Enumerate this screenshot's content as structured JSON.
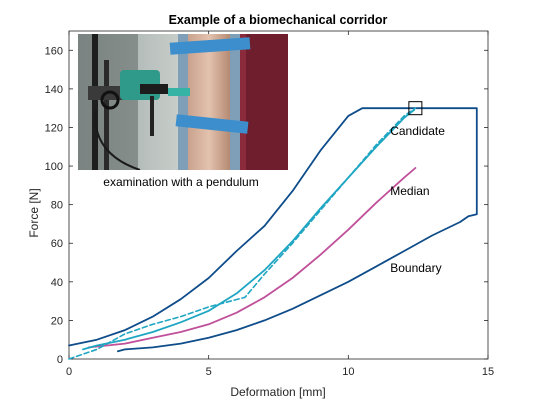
{
  "chart_data": {
    "type": "line",
    "title": "Example of a biomechanical corridor",
    "xlabel": "Deformation [mm]",
    "ylabel": "Force [N]",
    "xlim": [
      0,
      15
    ],
    "ylim": [
      0,
      170
    ],
    "xticks": [
      0,
      5,
      10,
      15
    ],
    "yticks": [
      0,
      20,
      40,
      60,
      80,
      100,
      120,
      140,
      160
    ],
    "grid": false,
    "colors": {
      "boundary": "#0e4c8a",
      "median": "#c0509a",
      "candidate": "#1ea6c3",
      "axis": "#262626"
    },
    "series": [
      {
        "name": "Boundary",
        "role": "boundary",
        "x": [
          0,
          1,
          2,
          3,
          4,
          5,
          6,
          7,
          8,
          9,
          10,
          10.5,
          12,
          14.6,
          14.6,
          14.3,
          14,
          13,
          12,
          11,
          10,
          9,
          8,
          7,
          6,
          5,
          4,
          3,
          2,
          1.75
        ],
        "y": [
          7,
          10,
          15,
          22,
          31,
          42,
          56,
          69,
          87,
          108,
          126,
          130,
          130,
          130,
          75,
          74,
          71,
          64,
          56,
          48,
          40,
          33,
          26,
          20,
          15,
          11,
          8,
          6,
          5,
          4
        ]
      },
      {
        "name": "Median",
        "role": "median",
        "x": [
          0.7,
          2,
          3,
          4,
          5,
          6,
          7,
          8,
          9,
          10,
          11,
          12,
          12.4
        ],
        "y": [
          6,
          8,
          11,
          14,
          18,
          24,
          32,
          42,
          54,
          67,
          81,
          94,
          99
        ]
      },
      {
        "name": "Candidate",
        "role": "candidate",
        "x": [
          0.5,
          1,
          2,
          3,
          4,
          5,
          6,
          7,
          8,
          9,
          10,
          11,
          12,
          12.35
        ],
        "y": [
          5,
          7,
          10,
          14,
          19,
          25,
          34,
          46,
          61,
          78,
          94,
          110,
          125,
          129
        ]
      },
      {
        "name": "",
        "role": "candidate-dashed",
        "x": [
          0,
          1,
          2,
          3,
          4,
          5,
          6.3,
          7,
          8,
          9,
          10,
          11,
          12,
          12.4
        ],
        "y": [
          0,
          5,
          13,
          18,
          22,
          27,
          32,
          44,
          60,
          77,
          94,
          111,
          126,
          130
        ]
      }
    ],
    "annotations": [
      {
        "text": "Candidate",
        "x": 11.5,
        "y": 116
      },
      {
        "text": "Median",
        "x": 11.5,
        "y": 85
      },
      {
        "text": "Boundary",
        "x": 11.5,
        "y": 45
      }
    ],
    "inset": {
      "caption": "examination with a pendulum"
    },
    "marker": {
      "x": 12.4,
      "y": 130
    }
  }
}
